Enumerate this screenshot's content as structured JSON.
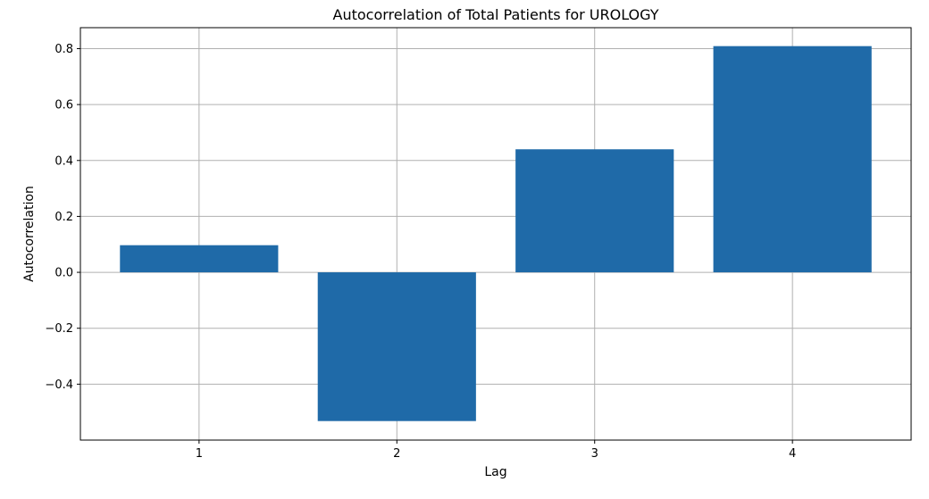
{
  "chart_data": {
    "type": "bar",
    "title": "Autocorrelation of Total Patients for UROLOGY",
    "xlabel": "Lag",
    "ylabel": "Autocorrelation",
    "categories": [
      "1",
      "2",
      "3",
      "4"
    ],
    "values": [
      0.097,
      -0.532,
      0.44,
      0.809
    ],
    "ylim": [
      -0.6,
      0.875
    ],
    "yticks": [
      -0.4,
      -0.2,
      0.0,
      0.2,
      0.4,
      0.6,
      0.8
    ],
    "ytick_labels": [
      "−0.4",
      "−0.2",
      "0.0",
      "0.2",
      "0.4",
      "0.6",
      "0.8"
    ],
    "grid": true,
    "bar_color": "#1f6aa8",
    "grid_color": "#b0b0b0"
  }
}
